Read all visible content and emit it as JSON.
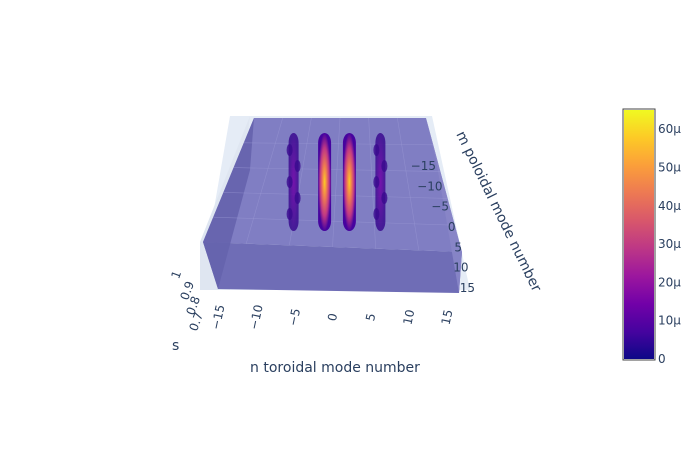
{
  "chart_data": {
    "type": "isosurface-3d",
    "axes": {
      "x": {
        "title": "n toroidal mode number",
        "ticks": [
          "−15",
          "−10",
          "−5",
          "0",
          "5",
          "10",
          "15"
        ],
        "range": [
          -15,
          15
        ]
      },
      "y": {
        "title": "m poloidal mode number",
        "ticks": [
          "−15",
          "−10",
          "−5",
          "0",
          "5",
          "10",
          "15"
        ],
        "range": [
          -15,
          15
        ]
      },
      "z": {
        "title": "s",
        "ticks": [
          "0.7",
          "0.8",
          "0.9",
          "1"
        ],
        "range": [
          0.7,
          1
        ]
      }
    },
    "colorbar": {
      "ticks": [
        "0",
        "10μ",
        "20μ",
        "30μ",
        "40μ",
        "50μ",
        "60μ"
      ],
      "values": [
        0,
        10,
        20,
        30,
        40,
        50,
        60
      ],
      "min": 0,
      "max": 65,
      "colorscale": [
        "#0d0887",
        "#46039f",
        "#7201a8",
        "#9c179e",
        "#bd3786",
        "#d8576b",
        "#ed7953",
        "#fb9f3a",
        "#fdca26",
        "#f0f921"
      ]
    },
    "peak_columns": [
      {
        "n": -7,
        "peak": 0.18
      },
      {
        "n": -2,
        "peak": 0.95
      },
      {
        "n": 2,
        "peak": 1.0
      },
      {
        "n": 7,
        "peak": 0.2
      }
    ],
    "slab_color": "#7a78c0",
    "background_color": "#e5ecf6"
  }
}
